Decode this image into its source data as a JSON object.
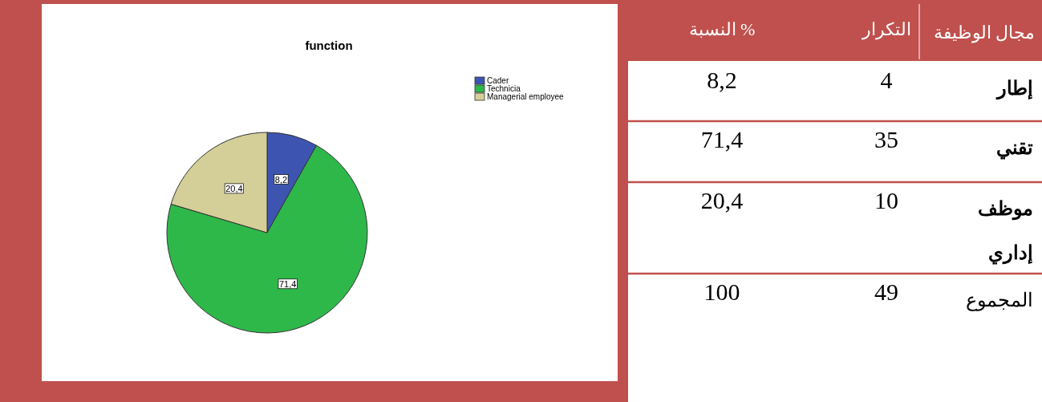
{
  "chart_data": [
    {
      "type": "pie",
      "title": "function",
      "categories": [
        "Cader",
        "Technicia",
        "Managerial employee"
      ],
      "values": [
        8.2,
        71.4,
        20.4
      ],
      "colors": [
        "#3d55b0",
        "#2eb84a",
        "#d4cf98"
      ],
      "value_labels": [
        "8,2",
        "71,4",
        "20,4"
      ],
      "legend": "top right"
    },
    {
      "type": "other",
      "annotations": [
        "مجال الوظيفة",
        "التكرار",
        "النسبة %",
        "إطار",
        "4",
        "8,2",
        "تقني",
        "35",
        "71,4",
        "موظف إداري",
        "10",
        "20,4",
        "المجموع",
        "49",
        "100"
      ]
    }
  ]
}
